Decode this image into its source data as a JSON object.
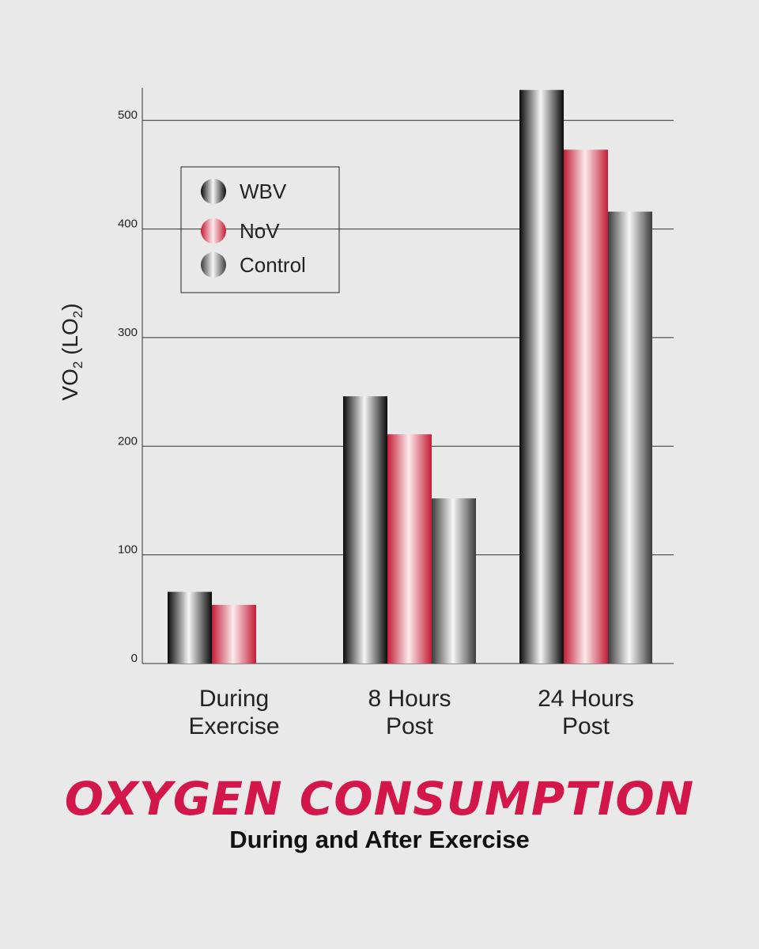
{
  "title": "OXYGEN CONSUMPTION",
  "subtitle": "During and After Exercise",
  "chart_data": {
    "type": "bar",
    "ylabel_main": "VO",
    "ylabel_sub1": "2",
    "ylabel_mid": " (LO",
    "ylabel_sub2": "2",
    "ylabel_end": ")",
    "ylim": [
      0,
      530
    ],
    "yticks": [
      0,
      100,
      200,
      300,
      400,
      500
    ],
    "grid": true,
    "legend_position": "top-left",
    "categories": [
      {
        "line1": "During",
        "line2": "Exercise"
      },
      {
        "line1": "8 Hours",
        "line2": "Post"
      },
      {
        "line1": "24 Hours",
        "line2": "Post"
      }
    ],
    "series": [
      {
        "name": "WBV",
        "values": [
          66,
          246,
          528
        ],
        "color": "#111111"
      },
      {
        "name": "NoV",
        "values": [
          54,
          211,
          473
        ],
        "color": "#c8203a"
      },
      {
        "name": "Control",
        "values": [
          0,
          152,
          416
        ],
        "color": "#555555"
      }
    ]
  }
}
